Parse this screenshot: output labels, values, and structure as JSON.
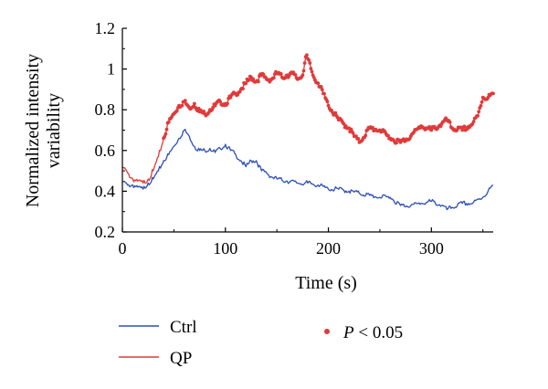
{
  "chart_data": {
    "type": "line",
    "xlabel": "Time (s)",
    "ylabel": [
      "Normalized intensity",
      "variability"
    ],
    "xlim": [
      0,
      360
    ],
    "ylim": [
      0.2,
      1.2
    ],
    "x_ticks": [
      0,
      100,
      200,
      300
    ],
    "x_tick_labels": [
      "0",
      "100",
      "200",
      "300"
    ],
    "y_ticks": [
      0.2,
      0.4,
      0.6,
      0.8,
      1.0,
      1.2
    ],
    "y_tick_labels": [
      "0.2",
      "0.4",
      "0.6",
      "0.8",
      "1",
      "1.2"
    ],
    "grid": false,
    "legend_position": "bottom",
    "series": [
      {
        "name": "Ctrl",
        "color": "#2d4fb8",
        "x": [
          0,
          5,
          10,
          15,
          20,
          25,
          30,
          35,
          40,
          45,
          50,
          55,
          60,
          65,
          70,
          75,
          80,
          85,
          90,
          95,
          100,
          105,
          110,
          115,
          120,
          125,
          130,
          135,
          140,
          145,
          150,
          160,
          170,
          180,
          190,
          200,
          210,
          220,
          230,
          240,
          250,
          260,
          270,
          280,
          290,
          300,
          310,
          315,
          320,
          330,
          340,
          350,
          355,
          360
        ],
        "values": [
          0.45,
          0.43,
          0.43,
          0.42,
          0.41,
          0.44,
          0.46,
          0.5,
          0.55,
          0.58,
          0.62,
          0.66,
          0.7,
          0.67,
          0.62,
          0.6,
          0.6,
          0.61,
          0.59,
          0.61,
          0.63,
          0.6,
          0.58,
          0.55,
          0.52,
          0.55,
          0.55,
          0.5,
          0.49,
          0.47,
          0.46,
          0.45,
          0.44,
          0.44,
          0.43,
          0.41,
          0.41,
          0.4,
          0.39,
          0.38,
          0.37,
          0.37,
          0.33,
          0.33,
          0.34,
          0.35,
          0.33,
          0.31,
          0.32,
          0.34,
          0.34,
          0.37,
          0.4,
          0.43
        ]
      },
      {
        "name": "QP",
        "color": "#e03a3a",
        "x": [
          0,
          5,
          10,
          15,
          20,
          25,
          30,
          35,
          40,
          45,
          50,
          55,
          60,
          65,
          70,
          75,
          80,
          85,
          90,
          95,
          100,
          105,
          110,
          115,
          120,
          125,
          130,
          135,
          140,
          145,
          150,
          155,
          160,
          165,
          170,
          175,
          178,
          180,
          185,
          190,
          195,
          200,
          210,
          220,
          225,
          230,
          240,
          250,
          260,
          270,
          280,
          290,
          300,
          310,
          315,
          320,
          330,
          340,
          345,
          350,
          355,
          360
        ],
        "values": [
          0.52,
          0.49,
          0.46,
          0.45,
          0.44,
          0.46,
          0.5,
          0.57,
          0.66,
          0.74,
          0.78,
          0.82,
          0.84,
          0.81,
          0.83,
          0.79,
          0.78,
          0.8,
          0.82,
          0.84,
          0.83,
          0.86,
          0.88,
          0.9,
          0.93,
          0.96,
          0.94,
          0.97,
          0.95,
          0.95,
          0.98,
          0.96,
          0.97,
          0.98,
          0.95,
          0.97,
          1.06,
          1.05,
          0.97,
          0.93,
          0.88,
          0.82,
          0.75,
          0.71,
          0.67,
          0.64,
          0.71,
          0.7,
          0.66,
          0.64,
          0.67,
          0.72,
          0.7,
          0.73,
          0.75,
          0.71,
          0.7,
          0.73,
          0.77,
          0.86,
          0.86,
          0.88
        ]
      },
      {
        "name": "P < 0.05",
        "marker": "dot",
        "color": "#e03a3a",
        "note": "significance markers overlay QP line where P < 0.05",
        "ranges": [
          [
            40,
            360
          ]
        ]
      }
    ]
  },
  "legend": [
    {
      "label": "Ctrl",
      "color": "#2d4fb8",
      "kind": "line"
    },
    {
      "label": "QP",
      "color": "#e03a3a",
      "kind": "line"
    },
    {
      "label_p": "P",
      "label_rest": " < 0.05",
      "color": "#e03a3a",
      "kind": "dot"
    }
  ]
}
